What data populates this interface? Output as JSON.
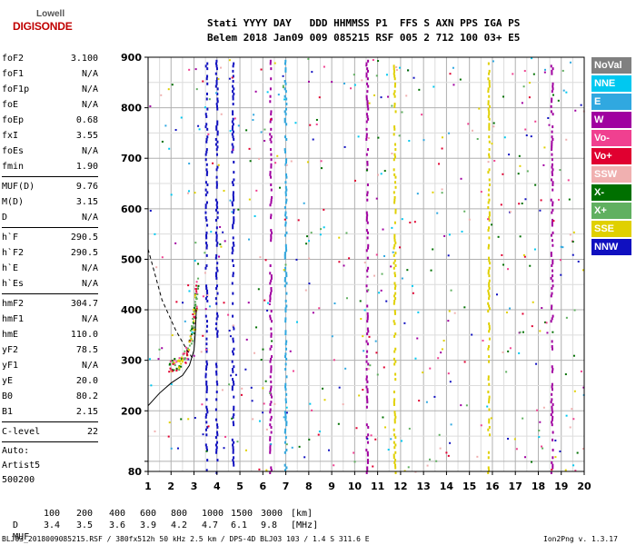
{
  "logo": {
    "top": "Lowell",
    "bottom": "DIGISONDE"
  },
  "header": {
    "line1": "Stati YYYY DAY   DDD HHMMSS P1  FFS S AXN PPS IGA PS",
    "line2": "Belem 2018 Jan09 009 085215 RSF 005 2 712 100 03+ E5"
  },
  "params_group1": [
    {
      "label": "foF2",
      "value": "3.100"
    },
    {
      "label": "foF1",
      "value": "N/A"
    },
    {
      "label": "foF1p",
      "value": "N/A"
    },
    {
      "label": "foE",
      "value": "N/A"
    },
    {
      "label": "foEp",
      "value": "0.68"
    },
    {
      "label": "fxI",
      "value": "3.55"
    },
    {
      "label": "foEs",
      "value": "N/A"
    },
    {
      "label": "fmin",
      "value": "1.90"
    }
  ],
  "params_group2": [
    {
      "label": "MUF(D)",
      "value": "9.76"
    },
    {
      "label": "M(D)",
      "value": "3.15"
    },
    {
      "label": "D",
      "value": "N/A"
    }
  ],
  "params_group3": [
    {
      "label": "h`F",
      "value": "290.5"
    },
    {
      "label": "h`F2",
      "value": "290.5"
    },
    {
      "label": "h`E",
      "value": "N/A"
    },
    {
      "label": "h`Es",
      "value": "N/A"
    }
  ],
  "params_group4": [
    {
      "label": "hmF2",
      "value": "304.7"
    },
    {
      "label": "hmF1",
      "value": "N/A"
    },
    {
      "label": "hmE",
      "value": "110.0"
    },
    {
      "label": "yF2",
      "value": "78.5"
    },
    {
      "label": "yF1",
      "value": "N/A"
    },
    {
      "label": "yE",
      "value": "20.0"
    },
    {
      "label": "B0",
      "value": "80.2"
    },
    {
      "label": "B1",
      "value": "2.15"
    }
  ],
  "params_group5": [
    {
      "label": "C-level",
      "value": "22"
    }
  ],
  "auto": {
    "line1": "Auto:",
    "line2": "Artist5",
    "line3": "500200"
  },
  "legend": [
    {
      "label": "NoVal",
      "color": "#808080"
    },
    {
      "label": "NNE",
      "color": "#00c8f0"
    },
    {
      "label": "E",
      "color": "#30a8e0"
    },
    {
      "label": "W",
      "color": "#a000a0"
    },
    {
      "label": "Vo-",
      "color": "#f04090"
    },
    {
      "label": "Vo+",
      "color": "#e00030"
    },
    {
      "label": "SSW",
      "color": "#f0b0b0"
    },
    {
      "label": "X-",
      "color": "#007000"
    },
    {
      "label": "X+",
      "color": "#60b060"
    },
    {
      "label": "SSE",
      "color": "#e0d000"
    },
    {
      "label": "NNW",
      "color": "#1010c0"
    }
  ],
  "chart_data": {
    "type": "scatter",
    "title": "",
    "xlim": [
      1,
      20
    ],
    "ylim": [
      80,
      900
    ],
    "x_ticks": [
      1,
      2,
      3,
      4,
      5,
      6,
      7,
      8,
      9,
      10,
      11,
      12,
      13,
      14,
      15,
      16,
      17,
      18,
      19,
      20
    ],
    "y_ticks": [
      80,
      100,
      200,
      300,
      400,
      500,
      600,
      700,
      800,
      900
    ],
    "y_tick_labels": [
      "80",
      "",
      "200",
      "300",
      "400",
      "500",
      "600",
      "700",
      "800",
      "900"
    ],
    "trace_F2": [
      [
        1.9,
        290
      ],
      [
        2.1,
        292
      ],
      [
        2.3,
        296
      ],
      [
        2.5,
        305
      ],
      [
        2.7,
        320
      ],
      [
        2.85,
        345
      ],
      [
        2.95,
        370
      ],
      [
        3.02,
        395
      ],
      [
        3.08,
        430
      ],
      [
        3.1,
        460
      ]
    ],
    "profile_curve": [
      [
        1.0,
        210
      ],
      [
        1.5,
        235
      ],
      [
        2.0,
        255
      ],
      [
        2.5,
        270
      ],
      [
        2.8,
        290
      ],
      [
        3.0,
        320
      ],
      [
        3.05,
        350
      ],
      [
        3.1,
        400
      ]
    ],
    "dashed_curve": [
      [
        1.0,
        520
      ],
      [
        1.6,
        420
      ],
      [
        2.2,
        360
      ],
      [
        2.7,
        320
      ],
      [
        3.0,
        300
      ]
    ],
    "interference_columns": [
      {
        "x": 3.55,
        "legend": "NNW"
      },
      {
        "x": 4.0,
        "legend": "NNW"
      },
      {
        "x": 4.7,
        "legend": "NNW"
      },
      {
        "x": 6.35,
        "legend": "W"
      },
      {
        "x": 7.0,
        "legend": "E"
      },
      {
        "x": 10.55,
        "legend": "W"
      },
      {
        "x": 11.75,
        "legend": "SSE"
      },
      {
        "x": 15.85,
        "legend": "SSE"
      },
      {
        "x": 18.6,
        "legend": "W"
      }
    ]
  },
  "muf_table": {
    "d_label": "D",
    "d_values": [
      "100",
      "200",
      "400",
      "600",
      "800",
      "1000",
      "1500",
      "3000"
    ],
    "d_unit": "[km]",
    "m_label": "MUF",
    "m_values": [
      "3.4",
      "3.5",
      "3.6",
      "3.9",
      "4.2",
      "4.7",
      "6.1",
      "9.8"
    ],
    "m_unit": "[MHz]"
  },
  "footer": {
    "left": "BLJ03_2018009085215.RSF / 380fx512h 50 kHz 2.5 km / DPS-4D BLJ03 103 / 1.4 S 311.6 E",
    "right": "Ion2Png v. 1.3.17"
  }
}
